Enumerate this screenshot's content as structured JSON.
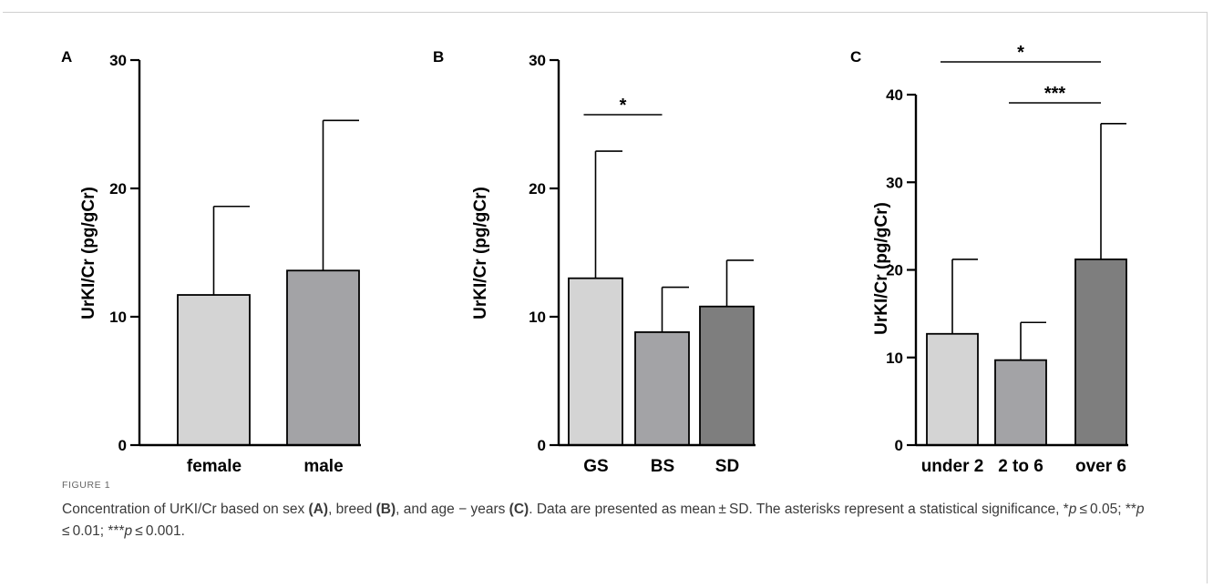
{
  "chart_data": [
    {
      "type": "bar",
      "panel": "A",
      "ylabel": "UrKI/Cr (pg/gCr)",
      "ylim": [
        0,
        30
      ],
      "yticks": [
        0,
        10,
        20,
        30
      ],
      "categories": [
        "female",
        "male"
      ],
      "values": [
        11.7,
        13.6
      ],
      "sd": [
        6.9,
        11.7
      ],
      "colors": [
        "#d4d4d4",
        "#a3a3a6"
      ],
      "significance": []
    },
    {
      "type": "bar",
      "panel": "B",
      "ylabel": "UrKI/Cr (pg/gCr)",
      "ylim": [
        0,
        30
      ],
      "yticks": [
        0,
        10,
        20,
        30
      ],
      "categories": [
        "GS",
        "BS",
        "SD"
      ],
      "values": [
        13.0,
        8.8,
        10.8
      ],
      "sd": [
        9.9,
        3.5,
        3.6
      ],
      "colors": [
        "#d4d4d4",
        "#a3a3a6",
        "#7e7e7e"
      ],
      "significance": [
        {
          "from": 0,
          "to": 1,
          "label": "*"
        }
      ]
    },
    {
      "type": "bar",
      "panel": "C",
      "ylabel": "UrKI/Cr (pg/gCr)",
      "ylim": [
        0,
        40
      ],
      "yticks": [
        0,
        10,
        20,
        30,
        40
      ],
      "categories": [
        "under 2",
        "2 to 6",
        "over 6"
      ],
      "values": [
        12.7,
        9.7,
        21.2
      ],
      "sd": [
        8.5,
        4.3,
        15.5
      ],
      "colors": [
        "#d4d4d4",
        "#a3a3a6",
        "#7e7e7e"
      ],
      "significance": [
        {
          "from": 0,
          "to": 2,
          "label": "*"
        },
        {
          "from": 1,
          "to": 2,
          "label": "***"
        }
      ]
    }
  ],
  "caption": {
    "label": "FIGURE 1",
    "p1": "Concentration of UrKI/Cr based on sex ",
    "a": "(A)",
    "p2": ", breed ",
    "b": "(B)",
    "p3": ", and age − years ",
    "c": "(C)",
    "p4": ". Data are presented as mean ± SD. The asterisks represent a statistical significance, *",
    "pa": "p",
    "p5": " ≤ 0.05; **",
    "pb": "p",
    "p6": " ≤ 0.01; ***",
    "pc": "p",
    "p7": " ≤ 0.001."
  }
}
